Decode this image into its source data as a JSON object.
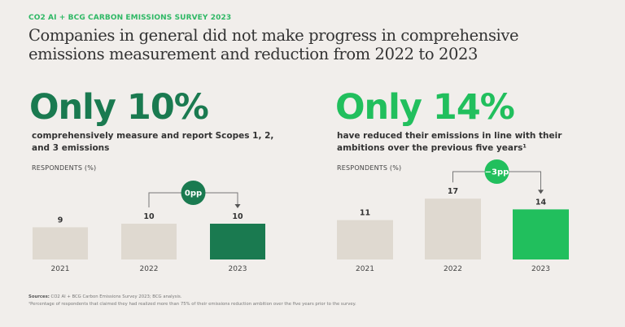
{
  "header": {
    "kicker": "CO2 AI + BCG CARBON EMISSIONS SURVEY 2023",
    "title": "Companies in general did not make progress in comprehensive emissions measurement and reduction from 2022 to 2023"
  },
  "panels": [
    {
      "headline": "Only 10%",
      "description": "comprehensively measure and report Scopes 1, 2, and 3 emissions",
      "axis_label": "RESPONDENTS (%)",
      "change_label": "0pp"
    },
    {
      "headline": "Only 14%",
      "description": "have reduced their emissions in line with their ambitions over the previous five years¹",
      "axis_label": "RESPONDENTS (%)",
      "change_label": "−3pp"
    }
  ],
  "colors": {
    "bar_default": "#dfd9d0",
    "dark_green": "#1a7a50",
    "bright_green": "#21bf5d",
    "connector": "#777777"
  },
  "chart_data": [
    {
      "type": "bar",
      "title": "Only 10%",
      "ylabel": "Respondents (%)",
      "categories": [
        "2021",
        "2022",
        "2023"
      ],
      "values": [
        9,
        10,
        10
      ],
      "highlight": "2023",
      "highlight_color": "#1a7a50",
      "annotation": {
        "from": "2022",
        "to": "2023",
        "label": "0pp"
      },
      "ylim": [
        0,
        20
      ],
      "grid": false
    },
    {
      "type": "bar",
      "title": "Only 14%",
      "ylabel": "Respondents (%)",
      "categories": [
        "2021",
        "2022",
        "2023"
      ],
      "values": [
        11,
        17,
        14
      ],
      "highlight": "2023",
      "highlight_color": "#21bf5d",
      "annotation": {
        "from": "2022",
        "to": "2023",
        "label": "−3pp"
      },
      "ylim": [
        0,
        20
      ],
      "grid": false
    }
  ],
  "footer": {
    "sources_label": "Sources:",
    "sources_text": "CO2 AI + BCG Carbon Emissions Survey 2023; BCG analysis.",
    "footnote": "¹Percentage of respondents that claimed they had realized more than 75% of their emissions reduction ambition over the five years prior to the survey."
  }
}
